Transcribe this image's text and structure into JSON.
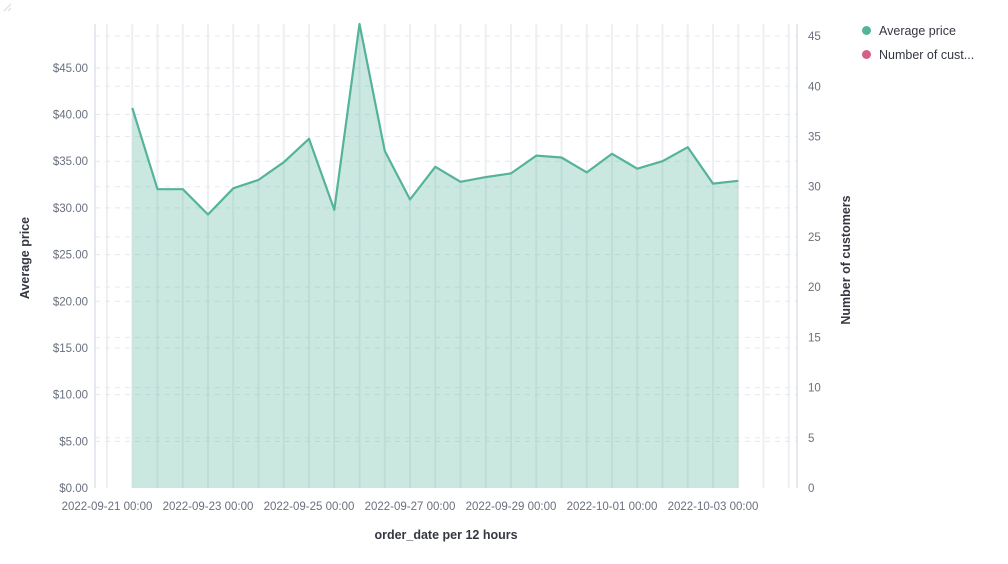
{
  "colors": {
    "series_avg_price": "#54b399",
    "series_avg_price_fill": "rgba(84,179,153,0.3)",
    "series_customers": "#d36086",
    "tick_label": "#69707d",
    "axis_title": "#343741"
  },
  "legend": {
    "items": [
      {
        "label": "Average price",
        "color": "#54b399"
      },
      {
        "label": "Number of cust...",
        "color": "#d36086"
      }
    ]
  },
  "axes": {
    "left": {
      "title": "Average price",
      "tick_labels": [
        "$0.00",
        "$5.00",
        "$10.00",
        "$15.00",
        "$20.00",
        "$25.00",
        "$30.00",
        "$35.00",
        "$40.00",
        "$45.00"
      ],
      "tick_values": [
        0,
        5,
        10,
        15,
        20,
        25,
        30,
        35,
        40,
        45
      ]
    },
    "right": {
      "title": "Number of customers",
      "tick_labels": [
        "0",
        "5",
        "10",
        "15",
        "20",
        "25",
        "30",
        "35",
        "40",
        "45"
      ],
      "tick_values": [
        0,
        5,
        10,
        15,
        20,
        25,
        30,
        35,
        40,
        45
      ]
    },
    "bottom": {
      "title": "order_date per 12 hours",
      "tick_labels": [
        "2022-09-21 00:00",
        "2022-09-23 00:00",
        "2022-09-25 00:00",
        "2022-09-27 00:00",
        "2022-09-29 00:00",
        "2022-10-01 00:00",
        "2022-10-03 00:00"
      ]
    }
  },
  "chart_data": {
    "type": "area",
    "title": "",
    "xlabel": "order_date per 12 hours",
    "ylabel_left": "Average price",
    "ylabel_right": "Number of customers",
    "x": [
      "2022-09-21 12:00",
      "2022-09-22 00:00",
      "2022-09-22 12:00",
      "2022-09-23 00:00",
      "2022-09-23 12:00",
      "2022-09-24 00:00",
      "2022-09-24 12:00",
      "2022-09-25 00:00",
      "2022-09-25 12:00",
      "2022-09-26 00:00",
      "2022-09-26 12:00",
      "2022-09-27 00:00",
      "2022-09-27 12:00",
      "2022-09-28 00:00",
      "2022-09-28 12:00",
      "2022-09-29 00:00",
      "2022-09-29 12:00",
      "2022-09-30 00:00",
      "2022-09-30 12:00",
      "2022-10-01 00:00",
      "2022-10-01 12:00",
      "2022-10-02 00:00",
      "2022-10-02 12:00",
      "2022-10-03 00:00",
      "2022-10-03 12:00"
    ],
    "series": [
      {
        "name": "Average price",
        "yaxis": "left",
        "color": "#54b399",
        "values": [
          40.7,
          32.0,
          32.0,
          29.3,
          32.1,
          33.0,
          34.9,
          37.4,
          29.8,
          49.7,
          36.1,
          30.9,
          34.4,
          32.8,
          33.3,
          33.7,
          35.6,
          35.4,
          33.8,
          35.8,
          34.2,
          35.0,
          36.5,
          32.6,
          32.9
        ]
      },
      {
        "name": "Number of customers",
        "yaxis": "right",
        "color": "#d36086",
        "values": []
      }
    ],
    "ylim_left": [
      0,
      49.7
    ],
    "ylim_right": [
      0,
      46.2
    ],
    "grid": true,
    "legend_position": "top-right"
  }
}
